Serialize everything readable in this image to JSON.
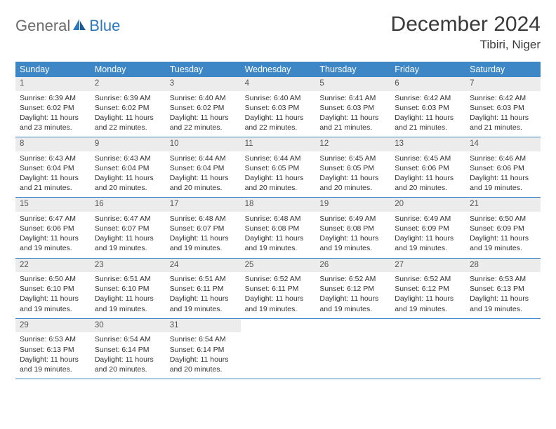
{
  "logo": {
    "part1": "General",
    "part2": "Blue"
  },
  "title": "December 2024",
  "location": "Tibiri, Niger",
  "colors": {
    "header_bg": "#3d87c7",
    "header_text": "#ffffff",
    "daynum_bg": "#ececec",
    "text": "#333333",
    "rule": "#3d87c7",
    "logo_gray": "#6b6b6b",
    "logo_blue": "#2d77bd"
  },
  "day_names": [
    "Sunday",
    "Monday",
    "Tuesday",
    "Wednesday",
    "Thursday",
    "Friday",
    "Saturday"
  ],
  "weeks": [
    [
      {
        "d": "1",
        "sr": "Sunrise: 6:39 AM",
        "ss": "Sunset: 6:02 PM",
        "dl": "Daylight: 11 hours and 23 minutes."
      },
      {
        "d": "2",
        "sr": "Sunrise: 6:39 AM",
        "ss": "Sunset: 6:02 PM",
        "dl": "Daylight: 11 hours and 22 minutes."
      },
      {
        "d": "3",
        "sr": "Sunrise: 6:40 AM",
        "ss": "Sunset: 6:02 PM",
        "dl": "Daylight: 11 hours and 22 minutes."
      },
      {
        "d": "4",
        "sr": "Sunrise: 6:40 AM",
        "ss": "Sunset: 6:03 PM",
        "dl": "Daylight: 11 hours and 22 minutes."
      },
      {
        "d": "5",
        "sr": "Sunrise: 6:41 AM",
        "ss": "Sunset: 6:03 PM",
        "dl": "Daylight: 11 hours and 21 minutes."
      },
      {
        "d": "6",
        "sr": "Sunrise: 6:42 AM",
        "ss": "Sunset: 6:03 PM",
        "dl": "Daylight: 11 hours and 21 minutes."
      },
      {
        "d": "7",
        "sr": "Sunrise: 6:42 AM",
        "ss": "Sunset: 6:03 PM",
        "dl": "Daylight: 11 hours and 21 minutes."
      }
    ],
    [
      {
        "d": "8",
        "sr": "Sunrise: 6:43 AM",
        "ss": "Sunset: 6:04 PM",
        "dl": "Daylight: 11 hours and 21 minutes."
      },
      {
        "d": "9",
        "sr": "Sunrise: 6:43 AM",
        "ss": "Sunset: 6:04 PM",
        "dl": "Daylight: 11 hours and 20 minutes."
      },
      {
        "d": "10",
        "sr": "Sunrise: 6:44 AM",
        "ss": "Sunset: 6:04 PM",
        "dl": "Daylight: 11 hours and 20 minutes."
      },
      {
        "d": "11",
        "sr": "Sunrise: 6:44 AM",
        "ss": "Sunset: 6:05 PM",
        "dl": "Daylight: 11 hours and 20 minutes."
      },
      {
        "d": "12",
        "sr": "Sunrise: 6:45 AM",
        "ss": "Sunset: 6:05 PM",
        "dl": "Daylight: 11 hours and 20 minutes."
      },
      {
        "d": "13",
        "sr": "Sunrise: 6:45 AM",
        "ss": "Sunset: 6:06 PM",
        "dl": "Daylight: 11 hours and 20 minutes."
      },
      {
        "d": "14",
        "sr": "Sunrise: 6:46 AM",
        "ss": "Sunset: 6:06 PM",
        "dl": "Daylight: 11 hours and 19 minutes."
      }
    ],
    [
      {
        "d": "15",
        "sr": "Sunrise: 6:47 AM",
        "ss": "Sunset: 6:06 PM",
        "dl": "Daylight: 11 hours and 19 minutes."
      },
      {
        "d": "16",
        "sr": "Sunrise: 6:47 AM",
        "ss": "Sunset: 6:07 PM",
        "dl": "Daylight: 11 hours and 19 minutes."
      },
      {
        "d": "17",
        "sr": "Sunrise: 6:48 AM",
        "ss": "Sunset: 6:07 PM",
        "dl": "Daylight: 11 hours and 19 minutes."
      },
      {
        "d": "18",
        "sr": "Sunrise: 6:48 AM",
        "ss": "Sunset: 6:08 PM",
        "dl": "Daylight: 11 hours and 19 minutes."
      },
      {
        "d": "19",
        "sr": "Sunrise: 6:49 AM",
        "ss": "Sunset: 6:08 PM",
        "dl": "Daylight: 11 hours and 19 minutes."
      },
      {
        "d": "20",
        "sr": "Sunrise: 6:49 AM",
        "ss": "Sunset: 6:09 PM",
        "dl": "Daylight: 11 hours and 19 minutes."
      },
      {
        "d": "21",
        "sr": "Sunrise: 6:50 AM",
        "ss": "Sunset: 6:09 PM",
        "dl": "Daylight: 11 hours and 19 minutes."
      }
    ],
    [
      {
        "d": "22",
        "sr": "Sunrise: 6:50 AM",
        "ss": "Sunset: 6:10 PM",
        "dl": "Daylight: 11 hours and 19 minutes."
      },
      {
        "d": "23",
        "sr": "Sunrise: 6:51 AM",
        "ss": "Sunset: 6:10 PM",
        "dl": "Daylight: 11 hours and 19 minutes."
      },
      {
        "d": "24",
        "sr": "Sunrise: 6:51 AM",
        "ss": "Sunset: 6:11 PM",
        "dl": "Daylight: 11 hours and 19 minutes."
      },
      {
        "d": "25",
        "sr": "Sunrise: 6:52 AM",
        "ss": "Sunset: 6:11 PM",
        "dl": "Daylight: 11 hours and 19 minutes."
      },
      {
        "d": "26",
        "sr": "Sunrise: 6:52 AM",
        "ss": "Sunset: 6:12 PM",
        "dl": "Daylight: 11 hours and 19 minutes."
      },
      {
        "d": "27",
        "sr": "Sunrise: 6:52 AM",
        "ss": "Sunset: 6:12 PM",
        "dl": "Daylight: 11 hours and 19 minutes."
      },
      {
        "d": "28",
        "sr": "Sunrise: 6:53 AM",
        "ss": "Sunset: 6:13 PM",
        "dl": "Daylight: 11 hours and 19 minutes."
      }
    ],
    [
      {
        "d": "29",
        "sr": "Sunrise: 6:53 AM",
        "ss": "Sunset: 6:13 PM",
        "dl": "Daylight: 11 hours and 19 minutes."
      },
      {
        "d": "30",
        "sr": "Sunrise: 6:54 AM",
        "ss": "Sunset: 6:14 PM",
        "dl": "Daylight: 11 hours and 20 minutes."
      },
      {
        "d": "31",
        "sr": "Sunrise: 6:54 AM",
        "ss": "Sunset: 6:14 PM",
        "dl": "Daylight: 11 hours and 20 minutes."
      },
      null,
      null,
      null,
      null
    ]
  ]
}
